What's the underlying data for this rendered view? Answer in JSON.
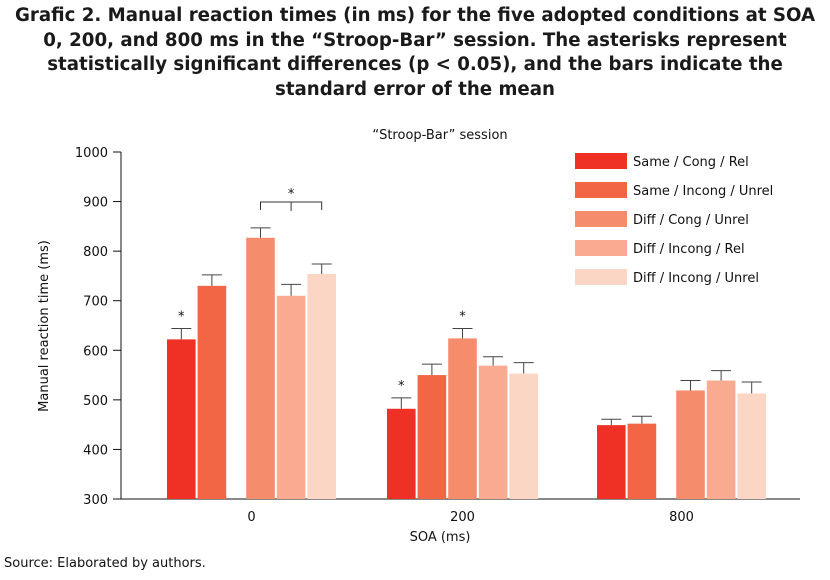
{
  "figure": {
    "title": "Grafic 2. Manual reaction times (in ms) for the five adopted conditions at SOA 0, 200, and 800 ms in the “Stroop-Bar” session. The asterisks represent statistically significant differences (p < 0.05), and the bars indicate the standard error of the mean",
    "source": "Source: Elaborated by authors."
  },
  "chart_data": {
    "type": "bar",
    "title": "“Stroop-Bar” session",
    "xlabel": "SOA (ms)",
    "ylabel": "Manual reaction time (ms)",
    "ylim": [
      300,
      1000
    ],
    "yticks": [
      300,
      400,
      500,
      600,
      700,
      800,
      900,
      1000
    ],
    "categories": [
      "0",
      "200",
      "800"
    ],
    "grid": false,
    "legend_position": "top-right",
    "series": [
      {
        "name": "Same / Cong / Rel",
        "color": "#ee3124",
        "values": [
          622,
          482,
          449
        ],
        "errors": [
          22,
          22,
          12
        ]
      },
      {
        "name": "Same / Incong / Unrel",
        "color": "#f26545",
        "values": [
          730,
          550,
          452
        ],
        "errors": [
          22,
          22,
          15
        ]
      },
      {
        "name": "Diff / Cong / Unrel",
        "color": "#f58c6c",
        "values": [
          827,
          624,
          519
        ],
        "errors": [
          20,
          20,
          20
        ]
      },
      {
        "name": "Diff / Incong / Rel",
        "color": "#f9aa90",
        "values": [
          710,
          569,
          539
        ],
        "errors": [
          23,
          18,
          20
        ]
      },
      {
        "name": "Diff / Incong / Unrel",
        "color": "#fcd6c4",
        "values": [
          754,
          553,
          513
        ],
        "errors": [
          20,
          22,
          23
        ]
      }
    ],
    "annotations": [
      {
        "text": "*",
        "category": "0",
        "series": "Same / Cong / Rel"
      },
      {
        "text": "*",
        "category": "200",
        "series": "Same / Cong / Rel"
      },
      {
        "text": "*",
        "category": "200",
        "series": "Diff / Cong / Unrel"
      },
      {
        "text": "*",
        "category": "0",
        "series_span": [
          "Diff / Cong / Unrel",
          "Diff / Incong / Unrel"
        ]
      }
    ]
  }
}
